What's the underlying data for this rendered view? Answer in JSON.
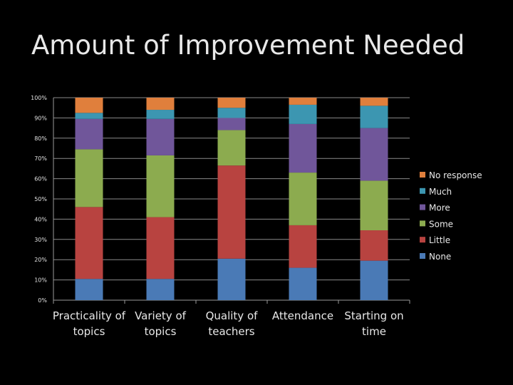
{
  "slide": {
    "title": "Amount of Improvement Needed"
  },
  "chart_data": {
    "type": "bar",
    "stacked": true,
    "percent": true,
    "categories": [
      [
        "Practicality of",
        "topics"
      ],
      [
        "Variety of",
        "topics"
      ],
      [
        "Quality of",
        "teachers"
      ],
      [
        "Attendance"
      ],
      [
        "Starting on",
        "time"
      ]
    ],
    "yticks": [
      "0%",
      "10%",
      "20%",
      "30%",
      "40%",
      "50%",
      "60%",
      "70%",
      "80%",
      "90%",
      "100%"
    ],
    "ylim": [
      0,
      100
    ],
    "grid": true,
    "legend_position": "right",
    "series": [
      {
        "name": "None",
        "color": "#4a7ab6",
        "values": [
          10.5,
          10.5,
          20.5,
          16,
          19.5
        ]
      },
      {
        "name": "Little",
        "color": "#b84340",
        "values": [
          35.5,
          30.5,
          46,
          21,
          15
        ]
      },
      {
        "name": "Some",
        "color": "#8cab4f",
        "values": [
          28.5,
          30.5,
          17.5,
          26,
          24.5
        ]
      },
      {
        "name": "More",
        "color": "#70569a",
        "values": [
          15,
          18,
          6,
          24,
          26
        ]
      },
      {
        "name": "Much",
        "color": "#3c96b1",
        "values": [
          3,
          4.5,
          5,
          9.5,
          11
        ]
      },
      {
        "name": "No response",
        "color": "#e07f3c",
        "values": [
          7.5,
          6,
          5,
          3.5,
          4
        ]
      }
    ]
  }
}
